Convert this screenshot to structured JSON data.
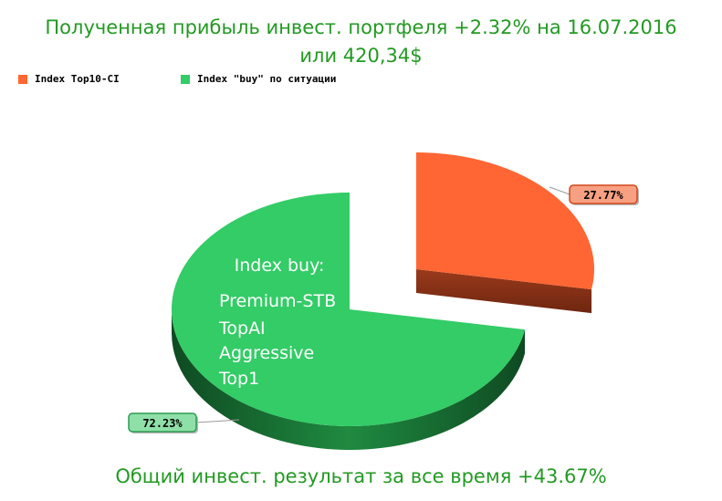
{
  "title_line1": "Полученная прибыль инвест. портфеля +2.32% на 16.07.2016",
  "title_line2": "или 420,34$",
  "footer": "Общий инвест. результат за все время +43.67%",
  "chart_data": {
    "type": "pie",
    "series": [
      {
        "name": "Index Top10-CI",
        "value": 27.77,
        "label": "27.77%",
        "color": "#ff6633",
        "side_color": "#8a3118",
        "label_bg": "#f8a082",
        "label_border": "#d0491e"
      },
      {
        "name": "Index \"buy\" по ситуации",
        "value": 72.23,
        "label": "72.23%",
        "color": "#33cc66",
        "side_color": "#1d7a3b",
        "label_bg": "#8fe0a8",
        "label_border": "#2a9c50"
      }
    ],
    "annotation": [
      "Index buy:",
      "Premium-STB",
      "TopAI",
      "Aggressive",
      "Top1"
    ],
    "legend_position": "top-left",
    "exploded_slice": "Index Top10-CI"
  }
}
